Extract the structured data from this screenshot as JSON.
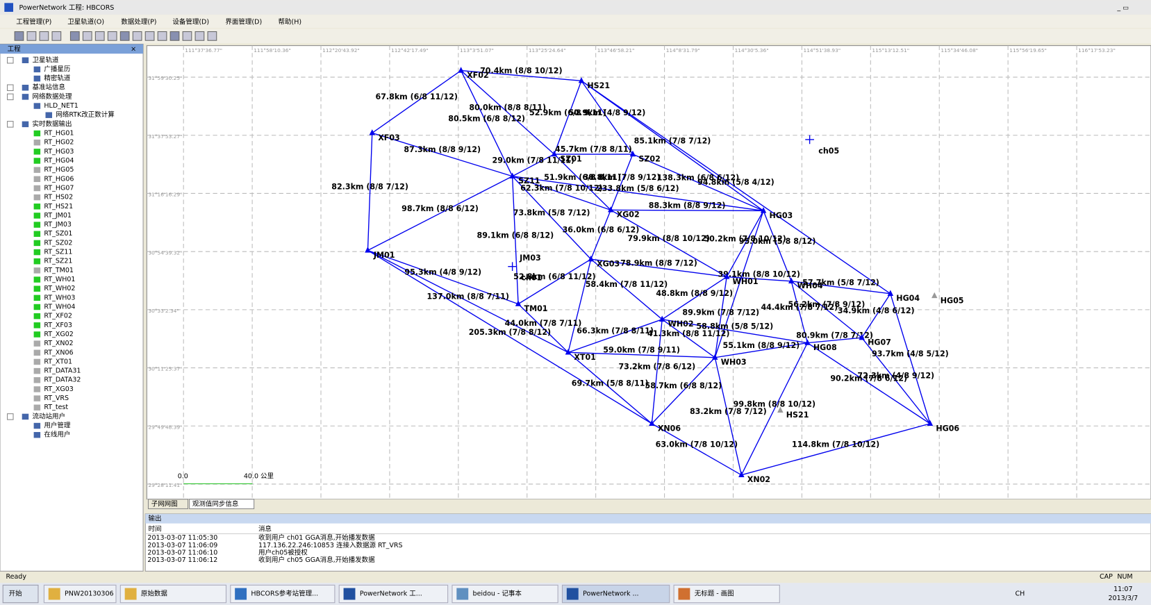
{
  "window": {
    "title": "PowerNetwork 工程: HBCORS"
  },
  "menu": [
    "工程管理(P)",
    "卫星轨道(O)",
    "数据处理(P)",
    "设备管理(D)",
    "界面管理(D)",
    "帮助(H)"
  ],
  "project_panel": {
    "title": "工程",
    "tree": [
      "卫星轨道",
      "广播星历",
      "精密轨道",
      "基准站信息",
      "网络数据处理",
      "HLD_NET1",
      "网络RTK改正数计算",
      "实时数据输出",
      "RT_HG01",
      "RT_HG02",
      "RT_HG03",
      "RT_HG04",
      "RT_HG05",
      "RT_HG06",
      "RT_HG07",
      "RT_HS02",
      "RT_HS21",
      "RT_JM01",
      "RT_JM03",
      "RT_SZ01",
      "RT_SZ02",
      "RT_SZ11",
      "RT_SZ21",
      "RT_TM01",
      "RT_WH01",
      "RT_WH02",
      "RT_WH03",
      "RT_WH04",
      "RT_XF02",
      "RT_XF03",
      "RT_XG02",
      "RT_XN02",
      "RT_XN06",
      "RT_XT01",
      "RT_DATA31",
      "RT_DATA32",
      "RT_XG03",
      "RT_VRS",
      "RT_test",
      "流动站用户",
      "用户管理",
      "在线用户"
    ]
  },
  "map": {
    "longitude_labels": [
      "111°37'36.77\"",
      "111°58'10.36\"",
      "112°20'43.92\"",
      "112°42'17.49\"",
      "113°3'51.07\"",
      "113°25'24.64\"",
      "113°46'58.21\"",
      "114°8'31.79\"",
      "114°30'5.36\"",
      "114°51'38.93\"",
      "115°13'12.51\"",
      "115°34'46.08\"",
      "115°56'19.65\"",
      "116°17'53.23\""
    ],
    "latitude_labels": [
      "31°59'30.25\"",
      "31°37'53.27\"",
      "31°16'16.29\"",
      "30°54'39.32\"",
      "30°33'2.34\"",
      "30°11'25.37\"",
      "29°49'48.39\"",
      "29°28'11.41\""
    ],
    "stations": [
      "XF02",
      "HS21",
      "XF03",
      "SZ01",
      "SZ02",
      "SZ11",
      "XG02",
      "HG03",
      "JM01",
      "JM03",
      "XG03",
      "WH01",
      "WH04",
      "HG04",
      "HG05",
      "TM01",
      "WH02",
      "HG07",
      "HG08",
      "XT01",
      "WH03",
      "HS21",
      "XN06",
      "HG06",
      "XN02"
    ],
    "baselines": [
      "70.4km (8/8 10/12)",
      "67.8km (6/8 11/12)",
      "80.0km (8/8 8/11)",
      "80.5km (6/8 8/12)",
      "52.9km (6/8 9/11)",
      "50.9km (4/8 9/12)",
      "85.1km (7/8 7/12)",
      "87.3km (8/8 9/12)",
      "82.3km (8/8 7/12)",
      "45.7km (7/8 8/11)",
      "29.0km (7/8 11/11)",
      "138.3km (6/8 6/12)",
      "62.3km (7/8 10/12)",
      "51.9km (6/8 8/11)",
      "38.8km (7/8 9/12)",
      "98.7km (8/8 6/12)",
      "73.8km (5/8 7/12)",
      "89.1km (6/8 8/12)",
      "88.3km (8/8 9/12)",
      "36.0km (6/8 6/12)",
      "79.9km (8/8 10/12)",
      "233.8km (5/8 6/12)",
      "50.2km (7/8 10/12)",
      "95.0km (5/8 8/12)",
      "94.8km (5/8 4/12)",
      "78.9km (8/8 7/12)",
      "52.8km (6/8 11/12)",
      "58.4km (7/8 11/12)",
      "95.3km (4/8 9/12)",
      "137.0km (8/8 7/11)",
      "205.3km (7/8 8/12)",
      "44.0km (7/8 7/11)",
      "39.1km (8/8 10/12)",
      "48.8km (8/8 9/12)",
      "57.7km (5/8 7/12)",
      "44.4km (7/8 7/12)",
      "56.2km (7/8 9/12)",
      "66.3km (7/8 8/11)",
      "41.3km (8/8 11/12)",
      "58.8km (5/8 5/12)",
      "73.2km (7/8 6/12)",
      "59.0km (7/8 9/11)",
      "69.7km (5/8 8/11)",
      "55.1km (8/8 9/12)",
      "58.7km (6/8 8/12)",
      "83.2km (7/8 7/12)",
      "80.9km (7/8 7/12)",
      "34.9km (4/8 6/12)",
      "93.7km (4/8 5/12)",
      "90.2km (7/8 6/12)",
      "72.3km (4/8 9/12)",
      "99.8km (8/8 10/12)",
      "63.0km (7/8 10/12)",
      "114.8km (7/8 10/12)",
      "89.9km (7/8 7/12)"
    ],
    "rovers": [
      "ch01",
      "ch05"
    ],
    "scale": {
      "start": "0.0",
      "end": "40.0 公里"
    }
  },
  "tabs": [
    "子网网图",
    "观测值同步信息"
  ],
  "output": {
    "title": "输出",
    "columns": [
      "时间",
      "消息"
    ],
    "rows": [
      {
        "time": "2013-03-07 11:05:30",
        "message": "收到用户 ch01 GGA消息,开始播发数据",
        "color": "#0000ff"
      },
      {
        "time": "2013-03-07 11:06:09",
        "message": "117.136.22.246:10853 连接入数据源 RT_VRS",
        "color": "#00c000"
      },
      {
        "time": "2013-03-07 11:06:10",
        "message": "用户ch05被授权",
        "color": "#0000ff"
      },
      {
        "time": "2013-03-07 11:06:12",
        "message": "收到用户 ch05 GGA消息,开始播发数据",
        "color": "#0000ff"
      }
    ]
  },
  "status": {
    "text": "Ready",
    "indicators": [
      "CAP",
      "NUM"
    ]
  },
  "taskbar": {
    "start": "开始",
    "items": [
      "PNW20130306",
      "原始数据",
      "HBCORS参考站管理...",
      "PowerNetwork 工...",
      "beidou - 记事本",
      "PowerNetwork ...",
      "无标题 - 画图"
    ],
    "tray": {
      "lang": "CH",
      "time": "11:07",
      "date": "2013/3/7"
    }
  }
}
